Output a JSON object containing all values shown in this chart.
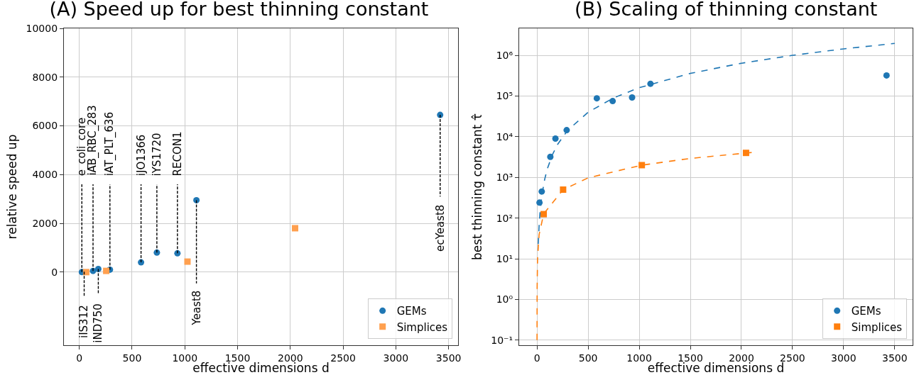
{
  "chart_data": [
    {
      "type": "scatter",
      "title": "(A) Speed up for best thinning constant",
      "xlabel": "effective dimensions d",
      "ylabel": "relative speed up",
      "xlim": [
        -146,
        3590
      ],
      "xticks": [
        0,
        500,
        1000,
        1500,
        2000,
        2500,
        3000,
        3500
      ],
      "ylim": [
        -3000,
        10000
      ],
      "yticks": [
        0,
        2000,
        4000,
        6000,
        8000,
        10000
      ],
      "grid": true,
      "legend": "bottom right",
      "series": [
        {
          "name": "GEMs",
          "color": "#1f77b4",
          "marker": "circle",
          "x": [
            24,
            46,
            130,
            180,
            290,
            585,
            735,
            930,
            1110,
            3420
          ],
          "values": [
            0,
            null,
            50,
            130,
            100,
            400,
            800,
            770,
            2950,
            6450
          ]
        },
        {
          "name": "Simplices",
          "color": "#ffa04f",
          "marker": "square",
          "x": [
            65,
            255,
            1025,
            2045
          ],
          "values": [
            0,
            50,
            430,
            1800
          ]
        }
      ],
      "annotations": [
        {
          "text": "e_coli_core",
          "x": 24,
          "y": 0
        },
        {
          "text": "iIS312",
          "x": 46,
          "y": 20
        },
        {
          "text": "iAB_RBC_283",
          "x": 130,
          "y": 50
        },
        {
          "text": "iND750",
          "x": 180,
          "y": 130
        },
        {
          "text": "iAT_PLT_636",
          "x": 290,
          "y": 100
        },
        {
          "text": "iJO1366",
          "x": 585,
          "y": 400
        },
        {
          "text": "iYS1720",
          "x": 735,
          "y": 800
        },
        {
          "text": "RECON1",
          "x": 930,
          "y": 770
        },
        {
          "text": "Yeast8",
          "x": 1110,
          "y": 2950
        },
        {
          "text": "ecYeast8",
          "x": 3420,
          "y": 6450
        }
      ]
    },
    {
      "type": "scatter",
      "title": "(B) Scaling of thinning constant",
      "xlabel": "effective dimensions d",
      "ylabel": "best thinning constant τ̂",
      "xlim": [
        -175,
        3675
      ],
      "xticks": [
        0,
        500,
        1000,
        1500,
        2000,
        2500,
        3000,
        3500
      ],
      "log": "y",
      "ylim": [
        0.075,
        4600000
      ],
      "yticks": [
        {
          "value": 0.1,
          "label": "10⁻¹"
        },
        {
          "value": 1,
          "label": "10⁰"
        },
        {
          "value": 10,
          "label": "10¹"
        },
        {
          "value": 100,
          "label": "10²"
        },
        {
          "value": 1000,
          "label": "10³"
        },
        {
          "value": 10000,
          "label": "10⁴"
        },
        {
          "value": 100000,
          "label": "10⁵"
        },
        {
          "value": 1000000,
          "label": "10⁶"
        }
      ],
      "grid": true,
      "legend": "bottom right",
      "series": [
        {
          "name": "GEMs",
          "color": "#1f77b4",
          "marker": "circle",
          "x": [
            24,
            46,
            130,
            180,
            290,
            585,
            740,
            930,
            1110,
            3420
          ],
          "values": [
            240,
            450,
            3200,
            9000,
            14500,
            88000,
            75000,
            92000,
            200000,
            320000
          ]
        },
        {
          "name": "Simplices",
          "color": "#ff7f0e",
          "marker": "square",
          "x": [
            65,
            255,
            1025,
            2045
          ],
          "values": [
            125,
            500,
            2000,
            4000
          ]
        },
        {
          "type": "line",
          "color": "#1f77b4",
          "line_style": "dashed",
          "marker": "none",
          "x": [
            12,
            20,
            30,
            50,
            75,
            100,
            150,
            200,
            300,
            500,
            750,
            1000,
            1500,
            2000,
            2500,
            3000,
            3500
          ],
          "values": [
            23,
            64,
            144,
            400,
            900,
            1600,
            3600,
            6400,
            14400,
            40000,
            90000,
            160000,
            360000,
            640000,
            1000000,
            1440000,
            1960000
          ]
        },
        {
          "type": "line",
          "color": "#ff7f0e",
          "line_style": "dashed",
          "marker": "none",
          "x": [
            0.05,
            1,
            5,
            20,
            65,
            255,
            500,
            1025,
            1500,
            2100
          ],
          "values": [
            0.1,
            2,
            10,
            39,
            127,
            497,
            975,
            2000,
            2925,
            4095
          ]
        }
      ]
    }
  ]
}
